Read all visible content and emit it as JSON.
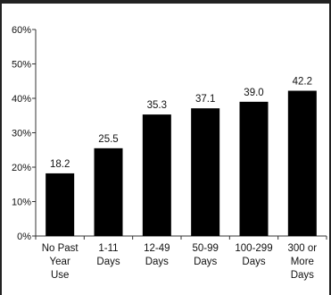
{
  "chart_data": {
    "type": "bar",
    "title": "",
    "xlabel": "",
    "ylabel": "",
    "ylim": [
      0,
      60
    ],
    "yticks": [
      "0%",
      "10%",
      "20%",
      "30%",
      "40%",
      "50%",
      "60%"
    ],
    "grid": false,
    "categories": [
      [
        "No Past",
        "Year",
        "Use"
      ],
      [
        "1-11",
        "Days"
      ],
      [
        "12-49",
        "Days"
      ],
      [
        "50-99",
        "Days"
      ],
      [
        "100-299",
        "Days"
      ],
      [
        "300 or",
        "More",
        "Days"
      ]
    ],
    "values": [
      18.2,
      25.5,
      35.3,
      37.1,
      39.0,
      42.2
    ],
    "value_labels": [
      "18.2",
      "25.5",
      "35.3",
      "37.1",
      "39.0",
      "42.2"
    ],
    "bar_color": "#000000"
  }
}
